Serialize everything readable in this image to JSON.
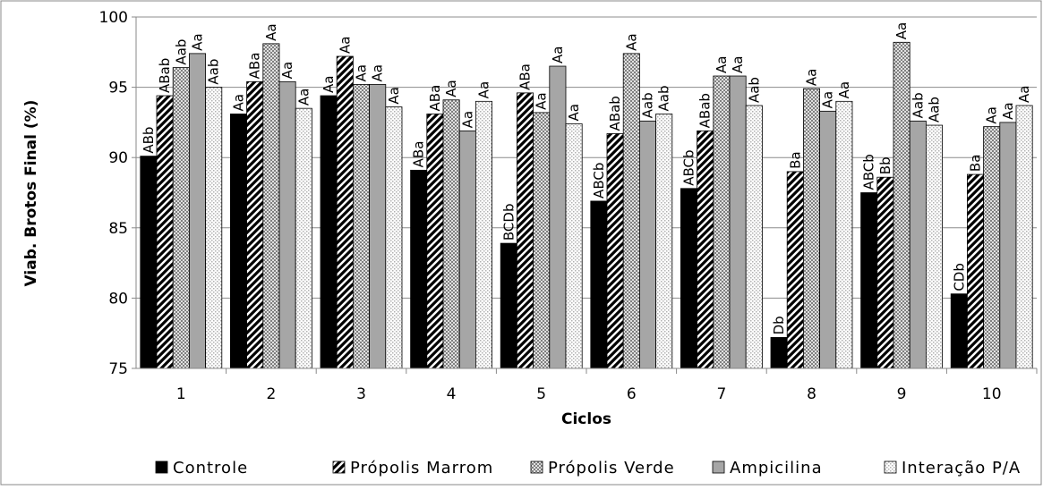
{
  "chart_data": {
    "type": "bar",
    "y_label": "Viab. Brotos Final (%)",
    "x_label": "Ciclos",
    "categories": [
      "1",
      "2",
      "3",
      "4",
      "5",
      "6",
      "7",
      "8",
      "9",
      "10"
    ],
    "ylim": [
      75,
      100
    ],
    "yticks": [
      75,
      80,
      85,
      90,
      95,
      100
    ],
    "grid": true,
    "legend": "bottom",
    "series": [
      {
        "name": "Controle",
        "color": "#000000",
        "pattern": "solid",
        "values": [
          90.1,
          93.1,
          94.4,
          89.1,
          83.9,
          86.9,
          87.8,
          77.2,
          87.5,
          80.3
        ],
        "labels": [
          "ABb",
          "Aa",
          "Aa",
          "ABa",
          "BCDb",
          "ABCb",
          "ABCb",
          "Db",
          "ABCb",
          "CDb"
        ]
      },
      {
        "name": "Própolis Marrom",
        "color": "#000000",
        "pattern": "diagonal",
        "values": [
          94.4,
          95.4,
          97.2,
          93.1,
          94.6,
          91.7,
          91.9,
          89.0,
          88.6,
          88.8
        ],
        "labels": [
          "ABab",
          "ABa",
          "Aa",
          "ABa",
          "ABa",
          "ABab",
          "ABab",
          "Ba",
          "Bb",
          "Ba"
        ]
      },
      {
        "name": "Própolis Verde",
        "color": "#808080",
        "pattern": "checker",
        "values": [
          96.4,
          98.1,
          95.2,
          94.1,
          93.2,
          97.4,
          95.8,
          94.9,
          98.2,
          92.2
        ],
        "labels": [
          "Aab",
          "Aa",
          "Aa",
          "Aa",
          "Aa",
          "Aa",
          "Aa",
          "Aa",
          "Aa",
          "Aa"
        ]
      },
      {
        "name": "Ampicilina",
        "color": "#a6a6a6",
        "pattern": "solid",
        "values": [
          97.4,
          95.4,
          95.2,
          91.9,
          96.5,
          92.6,
          95.8,
          93.3,
          92.6,
          92.5
        ],
        "labels": [
          "Aa",
          "Aa",
          "Aa",
          "Aa",
          "Aa",
          "Aab",
          "Aa",
          "Aa",
          "Aab",
          "Aa"
        ]
      },
      {
        "name": "Interação P/A",
        "color": "#b0b0b0",
        "pattern": "dots",
        "values": [
          95.0,
          93.5,
          93.6,
          94.0,
          92.4,
          93.1,
          93.7,
          94.0,
          92.3,
          93.7
        ],
        "labels": [
          "Aab",
          "Aa",
          "Aa",
          "Aa",
          "Aa",
          "Aab",
          "Aab",
          "Aa",
          "Aab",
          "Aa"
        ]
      }
    ]
  }
}
